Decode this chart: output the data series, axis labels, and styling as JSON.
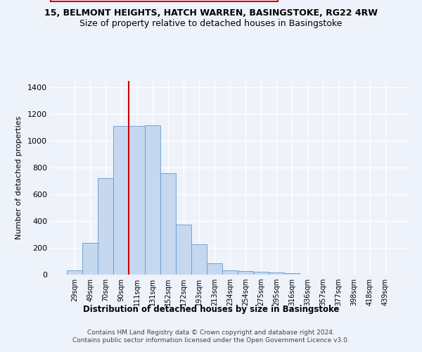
{
  "title": "15, BELMONT HEIGHTS, HATCH WARREN, BASINGSTOKE, RG22 4RW",
  "subtitle": "Size of property relative to detached houses in Basingstoke",
  "xlabel": "Distribution of detached houses by size in Basingstoke",
  "ylabel": "Number of detached properties",
  "bin_labels": [
    "29sqm",
    "49sqm",
    "70sqm",
    "90sqm",
    "111sqm",
    "131sqm",
    "152sqm",
    "172sqm",
    "193sqm",
    "213sqm",
    "234sqm",
    "254sqm",
    "275sqm",
    "295sqm",
    "316sqm",
    "336sqm",
    "357sqm",
    "377sqm",
    "398sqm",
    "418sqm",
    "439sqm"
  ],
  "bar_values": [
    30,
    235,
    725,
    1110,
    1115,
    1120,
    760,
    375,
    225,
    85,
    30,
    25,
    20,
    15,
    10,
    0,
    0,
    0,
    0,
    0,
    0
  ],
  "bar_color": "#c5d8f0",
  "bar_edge_color": "#6699cc",
  "vline_pos": 3.5,
  "vline_color": "#cc0000",
  "annotation_box_color": "#ffffff",
  "annotation_box_edge": "#cc0000",
  "ylim": [
    0,
    1450
  ],
  "yticks": [
    0,
    200,
    400,
    600,
    800,
    1000,
    1200,
    1400
  ],
  "footer": "Contains HM Land Registry data © Crown copyright and database right 2024.\nContains public sector information licensed under the Open Government Licence v3.0.",
  "bg_color": "#eef2fa",
  "grid_color": "#d8e0ee",
  "title_fontsize": 9,
  "subtitle_fontsize": 9
}
